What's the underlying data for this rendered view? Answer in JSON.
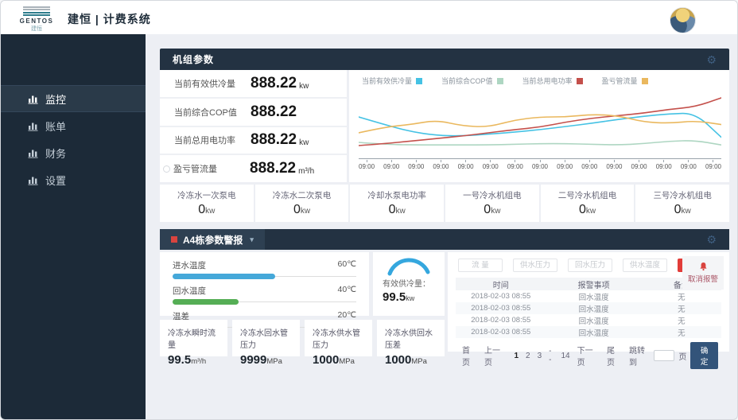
{
  "header": {
    "logo_text": "GENTOS",
    "logo_sub": "建恒",
    "title": "建恒 | 计费系统"
  },
  "sidebar": {
    "items": [
      {
        "label": "监控",
        "active": true
      },
      {
        "label": "账单",
        "active": false
      },
      {
        "label": "财务",
        "active": false
      },
      {
        "label": "设置",
        "active": false
      }
    ]
  },
  "unit_panel": {
    "title": "机组参数",
    "metrics": [
      {
        "label": "当前有效供冷量",
        "value": "888.22",
        "unit": "kw"
      },
      {
        "label": "当前综合COP值",
        "value": "888.22",
        "unit": ""
      },
      {
        "label": "当前总用电功率",
        "value": "888.22",
        "unit": "kw"
      },
      {
        "label": "盈亏管流量",
        "value": "888.22",
        "unit": "m³/h"
      }
    ],
    "stats": [
      {
        "label": "冷冻水一次泵电",
        "value": "0",
        "unit": "kw"
      },
      {
        "label": "冷冻水二次泵电",
        "value": "0",
        "unit": "kw"
      },
      {
        "label": "冷却水泵电功率",
        "value": "0",
        "unit": "kw"
      },
      {
        "label": "一号冷水机组电",
        "value": "0",
        "unit": "kw"
      },
      {
        "label": "二号冷水机组电",
        "value": "0",
        "unit": "kw"
      },
      {
        "label": "三号冷水机组电",
        "value": "0",
        "unit": "kw"
      }
    ]
  },
  "chart_data": {
    "type": "line",
    "x": [
      "09:00",
      "09:00",
      "09:00",
      "09:00",
      "09:00",
      "09:00",
      "09:00",
      "09:00",
      "09:00",
      "09:00",
      "09:00",
      "09:00",
      "09:00",
      "09:00",
      "09:00"
    ],
    "ylim": [
      0,
      100
    ],
    "grid": false,
    "legend_position": "top",
    "series": [
      {
        "name": "当前有效供冷量",
        "color": "#45c2e4",
        "values": [
          60,
          48,
          37,
          31,
          30,
          33,
          36,
          40,
          45,
          50,
          56,
          61,
          65,
          66,
          28
        ]
      },
      {
        "name": "当前综合COP值",
        "color": "#aed6c2",
        "values": [
          20,
          17,
          16,
          16,
          16,
          16,
          17,
          18,
          18,
          17,
          16,
          18,
          22,
          23,
          16
        ]
      },
      {
        "name": "当前总用电功率",
        "color": "#c4504b",
        "values": [
          15,
          18,
          22,
          26,
          30,
          35,
          40,
          44,
          52,
          58,
          62,
          66,
          72,
          76,
          90
        ]
      },
      {
        "name": "盈亏管流量",
        "color": "#eab85e",
        "values": [
          35,
          44,
          48,
          55,
          46,
          44,
          55,
          60,
          60,
          64,
          62,
          52,
          50,
          54,
          48
        ]
      }
    ]
  },
  "alarm_panel": {
    "title": "A4栋参数警报",
    "bars": [
      {
        "label": "进水温度",
        "value_label": "60℃",
        "percent": 56,
        "color": "#45a8d9"
      },
      {
        "label": "回水温度",
        "value_label": "40℃",
        "percent": 36,
        "color": "#55ae55"
      },
      {
        "label": "温差",
        "value_label": "20℃",
        "percent": 18,
        "color": "#efa63c"
      }
    ],
    "gauge": {
      "label": "有效供冷量：",
      "value": "99.5",
      "unit": "kw",
      "color": "#35a7de"
    },
    "filters": [
      {
        "label": "流 量",
        "active": false
      },
      {
        "label": "供水压力",
        "active": false
      },
      {
        "label": "回水压力",
        "active": false
      },
      {
        "label": "供水温度",
        "active": false
      },
      {
        "label": "回水温度",
        "active": true
      }
    ],
    "cancel_alarm": "取消报警",
    "table": {
      "headers": [
        "时间",
        "报警事项",
        "备注"
      ],
      "rows": [
        [
          "2018-02-03 08:55",
          "回水温度",
          "无"
        ],
        [
          "2018-02-03 08:55",
          "回水温度",
          "无"
        ],
        [
          "2018-02-03 08:55",
          "回水温度",
          "无"
        ],
        [
          "2018-02-03 08:55",
          "回水温度",
          "无"
        ]
      ]
    },
    "pagination": {
      "first": "首页",
      "prev": "上一页",
      "pages": [
        "1",
        "2",
        "3",
        "--",
        "14"
      ],
      "next": "下一页",
      "last": "尾页",
      "jump_label": "跳转到",
      "jump_unit": "页",
      "confirm": "确定"
    },
    "cards": [
      {
        "label": "冷冻水瞬时流量",
        "value": "99.5",
        "unit": "m³/h"
      },
      {
        "label": "冷冻水回水管压力",
        "value": "9999",
        "unit": "MPa"
      },
      {
        "label": "冷冻水供水管压力",
        "value": "1000",
        "unit": "MPa"
      },
      {
        "label": "冷冻水供回水压差",
        "value": "1000",
        "unit": "MPa"
      }
    ]
  }
}
